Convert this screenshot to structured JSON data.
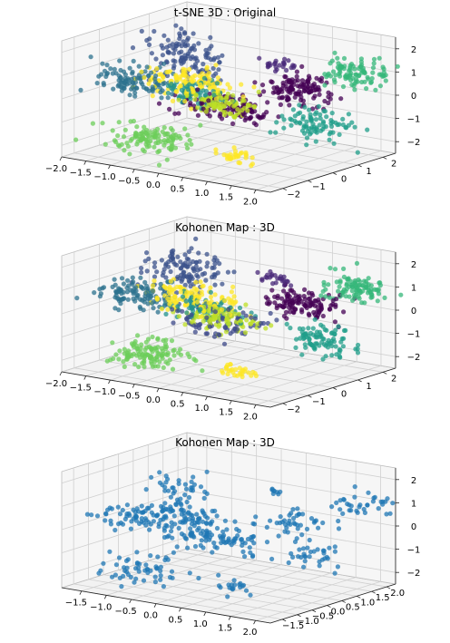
{
  "chart_data": [
    {
      "type": "scatter",
      "projection": "3d",
      "title": "t-SNE 3D : Original",
      "xticks": [
        "−2.0",
        "−1.5",
        "−1.0",
        "−0.5",
        "0.0",
        "0.5",
        "1.0",
        "1.5",
        "2.0"
      ],
      "yticks": [
        "−2",
        "−1",
        "0",
        "1",
        "2"
      ],
      "zticks": [
        "−2",
        "−1",
        "0",
        "1",
        "2"
      ],
      "xlim": [
        -2.0,
        2.3
      ],
      "ylim": [
        -2.5,
        2.5
      ],
      "zlim": [
        -2.5,
        2.5
      ],
      "grid": true,
      "colored": true,
      "colormap": "viridis",
      "clusters": [
        {
          "color": "#3b528b",
          "x": -1.35,
          "y": 1.2,
          "z": 0.9,
          "sx": 0.35,
          "sy": 0.35,
          "sz": 0.5,
          "n": 120
        },
        {
          "color": "#2c728e",
          "x": -1.6,
          "y": -0.3,
          "z": 0.2,
          "sx": 0.4,
          "sy": 0.3,
          "sz": 0.3,
          "n": 110
        },
        {
          "color": "#fde725",
          "x": -0.7,
          "y": 0.0,
          "z": 0.3,
          "sx": 0.45,
          "sy": 0.35,
          "sz": 0.3,
          "n": 130
        },
        {
          "color": "#21918c",
          "x": -0.4,
          "y": -0.1,
          "z": 0.0,
          "sx": 0.35,
          "sy": 0.3,
          "sz": 0.25,
          "n": 80
        },
        {
          "color": "#bddf26",
          "x": 0.1,
          "y": -0.3,
          "z": -0.2,
          "sx": 0.35,
          "sy": 0.25,
          "sz": 0.25,
          "n": 90
        },
        {
          "color": "#440154",
          "x": 0.2,
          "y": 0.0,
          "z": -0.5,
          "sx": 0.45,
          "sy": 0.35,
          "sz": 0.3,
          "n": 110
        },
        {
          "color": "#482878",
          "x": 0.3,
          "y": 1.6,
          "z": 1.0,
          "sx": 0.15,
          "sy": 0.15,
          "sz": 0.15,
          "n": 25
        },
        {
          "color": "#440154",
          "x": 1.0,
          "y": 1.3,
          "z": 0.2,
          "sx": 0.35,
          "sy": 0.3,
          "sz": 0.3,
          "n": 120
        },
        {
          "color": "#35b779",
          "x": 1.8,
          "y": 1.8,
          "z": 1.0,
          "sx": 0.3,
          "sy": 0.3,
          "sz": 0.3,
          "n": 100
        },
        {
          "color": "#1f9e89",
          "x": 1.9,
          "y": 0.2,
          "z": -0.6,
          "sx": 0.3,
          "sy": 0.3,
          "sz": 0.35,
          "n": 90
        },
        {
          "color": "#6ccd5a",
          "x": -0.7,
          "y": -1.5,
          "z": -1.6,
          "sx": 0.35,
          "sy": 0.4,
          "sz": 0.3,
          "n": 120
        },
        {
          "color": "#fde725",
          "x": 0.8,
          "y": -0.9,
          "z": -2.0,
          "sx": 0.25,
          "sy": 0.15,
          "sz": 0.12,
          "n": 30
        }
      ]
    },
    {
      "type": "scatter",
      "projection": "3d",
      "title": "Kohonen Map : 3D",
      "xticks": [
        "−2.0",
        "−1.5",
        "−1.0",
        "−0.5",
        "0.0",
        "0.5",
        "1.0",
        "1.5",
        "2.0"
      ],
      "yticks": [
        "−2",
        "−1",
        "0",
        "1",
        "2"
      ],
      "zticks": [
        "−2",
        "−1",
        "0",
        "1",
        "2"
      ],
      "xlim": [
        -2.0,
        2.3
      ],
      "ylim": [
        -2.5,
        2.5
      ],
      "zlim": [
        -2.5,
        2.5
      ],
      "grid": true,
      "colored": true,
      "colormap": "viridis",
      "clusters": [
        {
          "color": "#3b528b",
          "x": -1.35,
          "y": 1.2,
          "z": 0.9,
          "sx": 0.35,
          "sy": 0.35,
          "sz": 0.5,
          "n": 120
        },
        {
          "color": "#2c728e",
          "x": -1.6,
          "y": -0.3,
          "z": 0.2,
          "sx": 0.4,
          "sy": 0.3,
          "sz": 0.3,
          "n": 110
        },
        {
          "color": "#fde725",
          "x": -0.6,
          "y": 0.0,
          "z": 0.3,
          "sx": 0.45,
          "sy": 0.35,
          "sz": 0.3,
          "n": 130
        },
        {
          "color": "#21918c",
          "x": -0.3,
          "y": -0.1,
          "z": 0.0,
          "sx": 0.35,
          "sy": 0.3,
          "sz": 0.25,
          "n": 80
        },
        {
          "color": "#bddf26",
          "x": 0.2,
          "y": -0.3,
          "z": -0.2,
          "sx": 0.35,
          "sy": 0.25,
          "sz": 0.25,
          "n": 90
        },
        {
          "color": "#3e4a89",
          "x": 0.1,
          "y": -0.2,
          "z": -0.3,
          "sx": 0.4,
          "sy": 0.35,
          "sz": 0.3,
          "n": 80
        },
        {
          "color": "#482878",
          "x": 0.3,
          "y": 1.6,
          "z": 1.0,
          "sx": 0.15,
          "sy": 0.15,
          "sz": 0.15,
          "n": 25
        },
        {
          "color": "#440154",
          "x": 1.0,
          "y": 1.3,
          "z": 0.2,
          "sx": 0.35,
          "sy": 0.3,
          "sz": 0.3,
          "n": 120
        },
        {
          "color": "#35b779",
          "x": 1.8,
          "y": 1.8,
          "z": 1.0,
          "sx": 0.3,
          "sy": 0.3,
          "sz": 0.3,
          "n": 100
        },
        {
          "color": "#1f9e89",
          "x": 1.9,
          "y": 0.2,
          "z": -0.6,
          "sx": 0.3,
          "sy": 0.3,
          "sz": 0.35,
          "n": 90
        },
        {
          "color": "#6ccd5a",
          "x": -0.7,
          "y": -1.5,
          "z": -1.6,
          "sx": 0.35,
          "sy": 0.4,
          "sz": 0.3,
          "n": 120
        },
        {
          "color": "#fde725",
          "x": 0.8,
          "y": -0.9,
          "z": -2.0,
          "sx": 0.25,
          "sy": 0.15,
          "sz": 0.12,
          "n": 30
        }
      ]
    },
    {
      "type": "scatter",
      "projection": "3d",
      "title": "Kohonen Map : 3D",
      "xticks": [
        "−1.5",
        "−1.0",
        "−0.5",
        "0.0",
        "0.5",
        "1.0",
        "1.5",
        "2.0"
      ],
      "yticks": [
        "−1.5",
        "−1.0",
        "−0.5",
        "0.0",
        "0.5",
        "1.0",
        "1.5",
        "2.0"
      ],
      "zticks": [
        "−2",
        "−1",
        "0",
        "1",
        "2"
      ],
      "xlim": [
        -1.9,
        2.3
      ],
      "ylim": [
        -1.9,
        2.3
      ],
      "zlim": [
        -2.5,
        2.5
      ],
      "grid": true,
      "colored": false,
      "color": "#1f77b4",
      "clusters": [
        {
          "x": -1.3,
          "y": 1.1,
          "z": 0.8,
          "sx": 0.25,
          "sy": 0.25,
          "sz": 0.45,
          "n": 45
        },
        {
          "x": -1.4,
          "y": -0.3,
          "z": 0.1,
          "sx": 0.4,
          "sy": 0.3,
          "sz": 0.25,
          "n": 60
        },
        {
          "x": -0.4,
          "y": 0.0,
          "z": 0.1,
          "sx": 0.5,
          "sy": 0.35,
          "sz": 0.3,
          "n": 90
        },
        {
          "x": 0.3,
          "y": -0.2,
          "z": -0.3,
          "sx": 0.4,
          "sy": 0.3,
          "sz": 0.3,
          "n": 70
        },
        {
          "x": 0.3,
          "y": 1.6,
          "z": 1.0,
          "sx": 0.12,
          "sy": 0.12,
          "sz": 0.12,
          "n": 8
        },
        {
          "x": 1.0,
          "y": 1.2,
          "z": 0.2,
          "sx": 0.3,
          "sy": 0.25,
          "sz": 0.25,
          "n": 40
        },
        {
          "x": 1.8,
          "y": 1.8,
          "z": 1.0,
          "sx": 0.25,
          "sy": 0.25,
          "sz": 0.25,
          "n": 35
        },
        {
          "x": 1.9,
          "y": 0.2,
          "z": -0.6,
          "sx": 0.25,
          "sy": 0.25,
          "sz": 0.3,
          "n": 35
        },
        {
          "x": -0.6,
          "y": -1.4,
          "z": -1.5,
          "sx": 0.4,
          "sy": 0.35,
          "sz": 0.3,
          "n": 55
        },
        {
          "x": 0.8,
          "y": -0.8,
          "z": -1.8,
          "sx": 0.3,
          "sy": 0.2,
          "sz": 0.2,
          "n": 20
        }
      ]
    }
  ]
}
